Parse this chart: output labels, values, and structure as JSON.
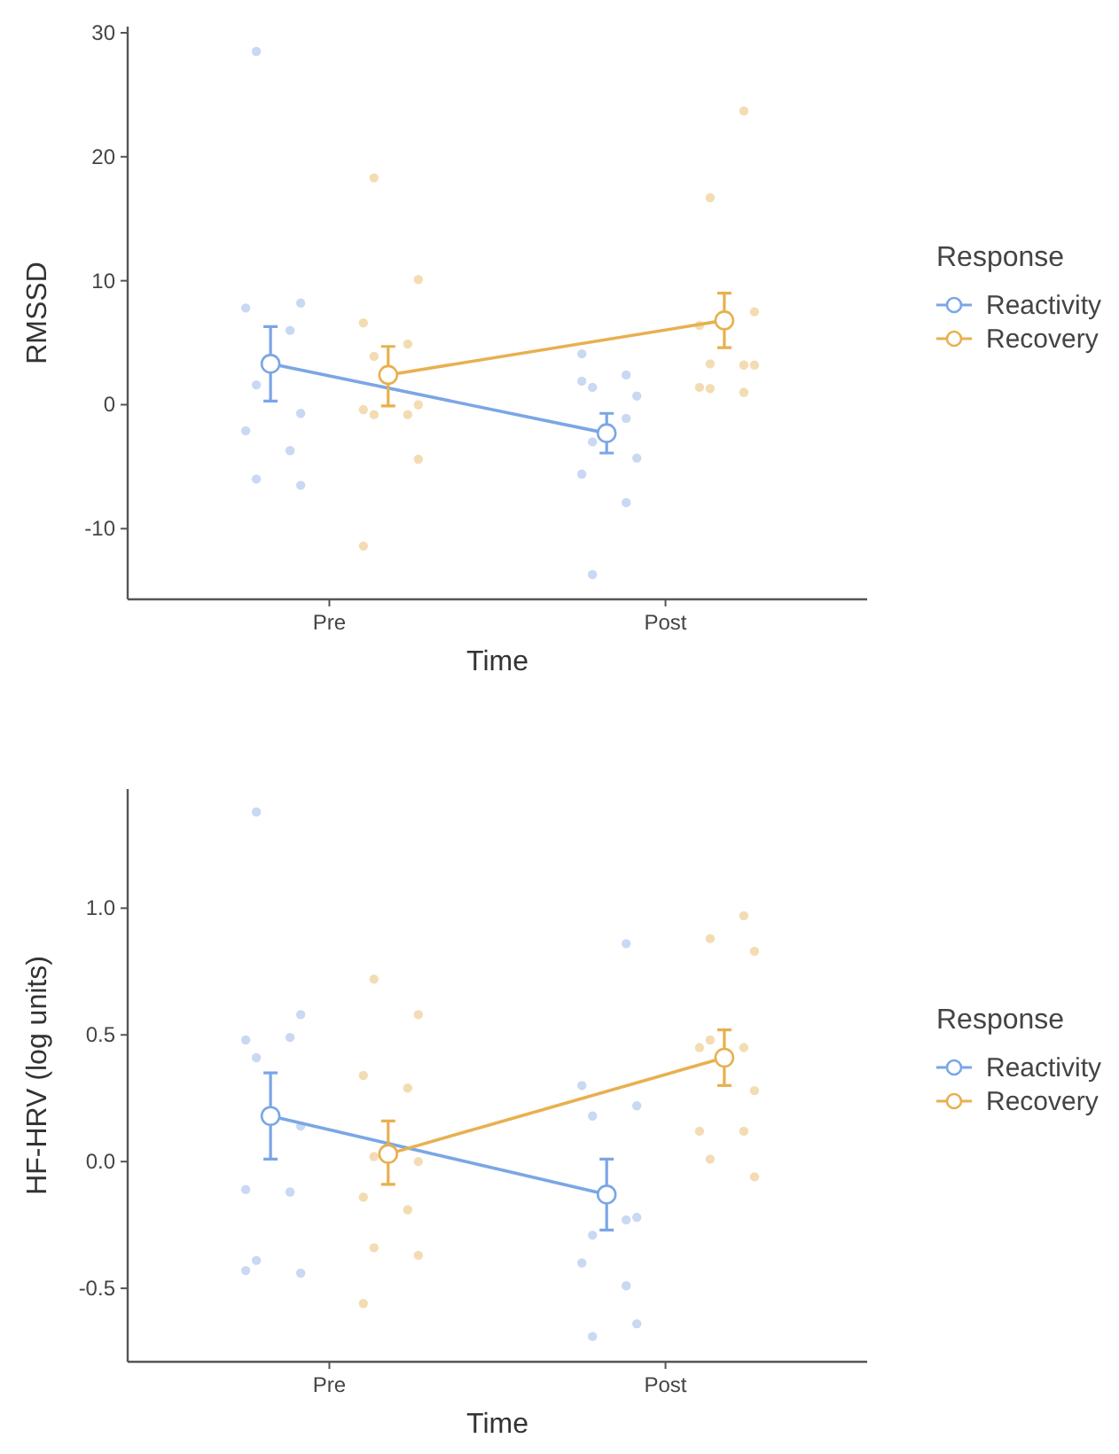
{
  "chart_data": [
    {
      "type": "line",
      "ylabel": "RMSSD",
      "xlabel": "Time",
      "legend_title": "Response",
      "legend": "right",
      "grid": false,
      "categories": [
        "Pre",
        "Post"
      ],
      "ylim": [
        -15.7,
        30.5
      ],
      "yticks": [
        -10,
        0,
        10,
        20,
        30
      ],
      "series": [
        {
          "type": "scatter",
          "color": "#c9d8f3",
          "marker": "circle",
          "x": [
            "Pre",
            "Pre",
            "Pre",
            "Pre",
            "Pre",
            "Pre",
            "Pre",
            "Pre",
            "Pre",
            "Pre",
            "Post",
            "Post",
            "Post",
            "Post",
            "Post",
            "Post",
            "Post",
            "Post",
            "Post",
            "Post",
            "Post"
          ],
          "values": [
            28.5,
            8.2,
            7.8,
            6.0,
            1.6,
            -0.7,
            -2.1,
            -3.7,
            -6.0,
            -6.5,
            4.1,
            2.4,
            1.4,
            0.7,
            1.9,
            -1.1,
            -3.0,
            -4.3,
            -5.6,
            -7.9,
            -13.7
          ]
        },
        {
          "type": "scatter",
          "color": "#f3dcb3",
          "marker": "circle",
          "x": [
            "Pre",
            "Pre",
            "Pre",
            "Pre",
            "Pre",
            "Pre",
            "Pre",
            "Pre",
            "Pre",
            "Pre",
            "Pre",
            "Post",
            "Post",
            "Post",
            "Post",
            "Post",
            "Post",
            "Post",
            "Post",
            "Post",
            "Post"
          ],
          "values": [
            18.3,
            10.1,
            6.6,
            4.9,
            3.9,
            0.0,
            -0.4,
            -0.8,
            -0.8,
            -4.4,
            -11.4,
            23.7,
            16.7,
            7.5,
            6.4,
            3.2,
            3.3,
            3.2,
            1.4,
            1.0,
            1.3
          ]
        },
        {
          "name": "Reactivity",
          "color": "#7ba6e6",
          "marker": "circle",
          "values": [
            3.3,
            -2.3
          ],
          "errors": [
            [
              0.3,
              6.3
            ],
            [
              -3.9,
              -0.7
            ]
          ]
        },
        {
          "name": "Recovery",
          "color": "#e8b04f",
          "marker": "circle",
          "values": [
            2.4,
            6.8
          ],
          "errors": [
            [
              -0.1,
              4.7
            ],
            [
              4.6,
              9.0
            ]
          ]
        }
      ]
    },
    {
      "type": "line",
      "ylabel": "HF-HRV (log units)",
      "xlabel": "Time",
      "legend_title": "Response",
      "legend": "right",
      "grid": false,
      "categories": [
        "Pre",
        "Post"
      ],
      "ylim": [
        -0.79,
        1.47
      ],
      "yticks": [
        -0.5,
        {
          "value": 0,
          "label": "0.0"
        },
        0.5,
        {
          "value": 1,
          "label": "1.0"
        }
      ],
      "series": [
        {
          "type": "scatter",
          "color": "#c9d8f3",
          "marker": "circle",
          "x": [
            "Pre",
            "Pre",
            "Pre",
            "Pre",
            "Pre",
            "Pre",
            "Pre",
            "Pre",
            "Pre",
            "Pre",
            "Pre",
            "Post",
            "Post",
            "Post",
            "Post",
            "Post",
            "Post",
            "Post",
            "Post",
            "Post",
            "Post",
            "Post"
          ],
          "values": [
            1.38,
            0.58,
            0.48,
            0.49,
            0.41,
            0.14,
            -0.11,
            -0.12,
            -0.39,
            -0.44,
            -0.43,
            0.86,
            0.18,
            0.22,
            0.3,
            -0.23,
            -0.29,
            -0.22,
            -0.4,
            -0.49,
            -0.69,
            -0.64
          ]
        },
        {
          "type": "scatter",
          "color": "#f3dcb3",
          "marker": "circle",
          "x": [
            "Pre",
            "Pre",
            "Pre",
            "Pre",
            "Pre",
            "Pre",
            "Pre",
            "Pre",
            "Pre",
            "Pre",
            "Pre",
            "Post",
            "Post",
            "Post",
            "Post",
            "Post",
            "Post",
            "Post",
            "Post",
            "Post",
            "Post",
            "Post"
          ],
          "values": [
            0.72,
            0.58,
            0.34,
            0.29,
            0.02,
            0.0,
            -0.14,
            -0.19,
            -0.34,
            -0.37,
            -0.56,
            0.97,
            0.88,
            0.83,
            0.45,
            0.45,
            0.48,
            0.28,
            0.12,
            0.12,
            0.01,
            -0.06
          ]
        },
        {
          "name": "Reactivity",
          "color": "#7ba6e6",
          "marker": "circle",
          "values": [
            0.18,
            -0.13
          ],
          "errors": [
            [
              0.01,
              0.35
            ],
            [
              -0.27,
              0.01
            ]
          ]
        },
        {
          "name": "Recovery",
          "color": "#e8b04f",
          "marker": "circle",
          "values": [
            0.03,
            0.41
          ],
          "errors": [
            [
              -0.09,
              0.16
            ],
            [
              0.3,
              0.52
            ]
          ]
        }
      ]
    }
  ]
}
